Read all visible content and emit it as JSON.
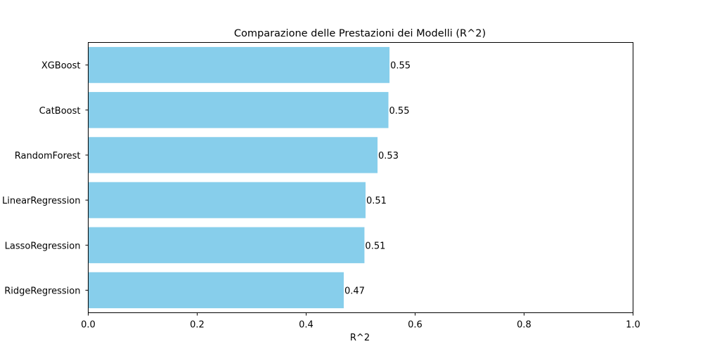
{
  "chart_data": {
    "type": "bar",
    "orientation": "horizontal",
    "title": "Comparazione delle Prestazioni dei Modelli (R^2)",
    "xlabel": "R^2",
    "ylabel": "",
    "xlim": [
      0,
      1
    ],
    "xticks": [
      "0.0",
      "0.2",
      "0.4",
      "0.6",
      "0.8",
      "1.0"
    ],
    "categories": [
      "XGBoost",
      "CatBoost",
      "RandomForest",
      "LinearRegression",
      "LassoRegression",
      "RidgeRegression"
    ],
    "values": [
      0.553,
      0.551,
      0.531,
      0.509,
      0.507,
      0.469
    ],
    "data_labels": [
      "0.55",
      "0.55",
      "0.53",
      "0.51",
      "0.51",
      "0.47"
    ],
    "bar_color": "#87ceeb",
    "grid": false,
    "legend": "none"
  }
}
